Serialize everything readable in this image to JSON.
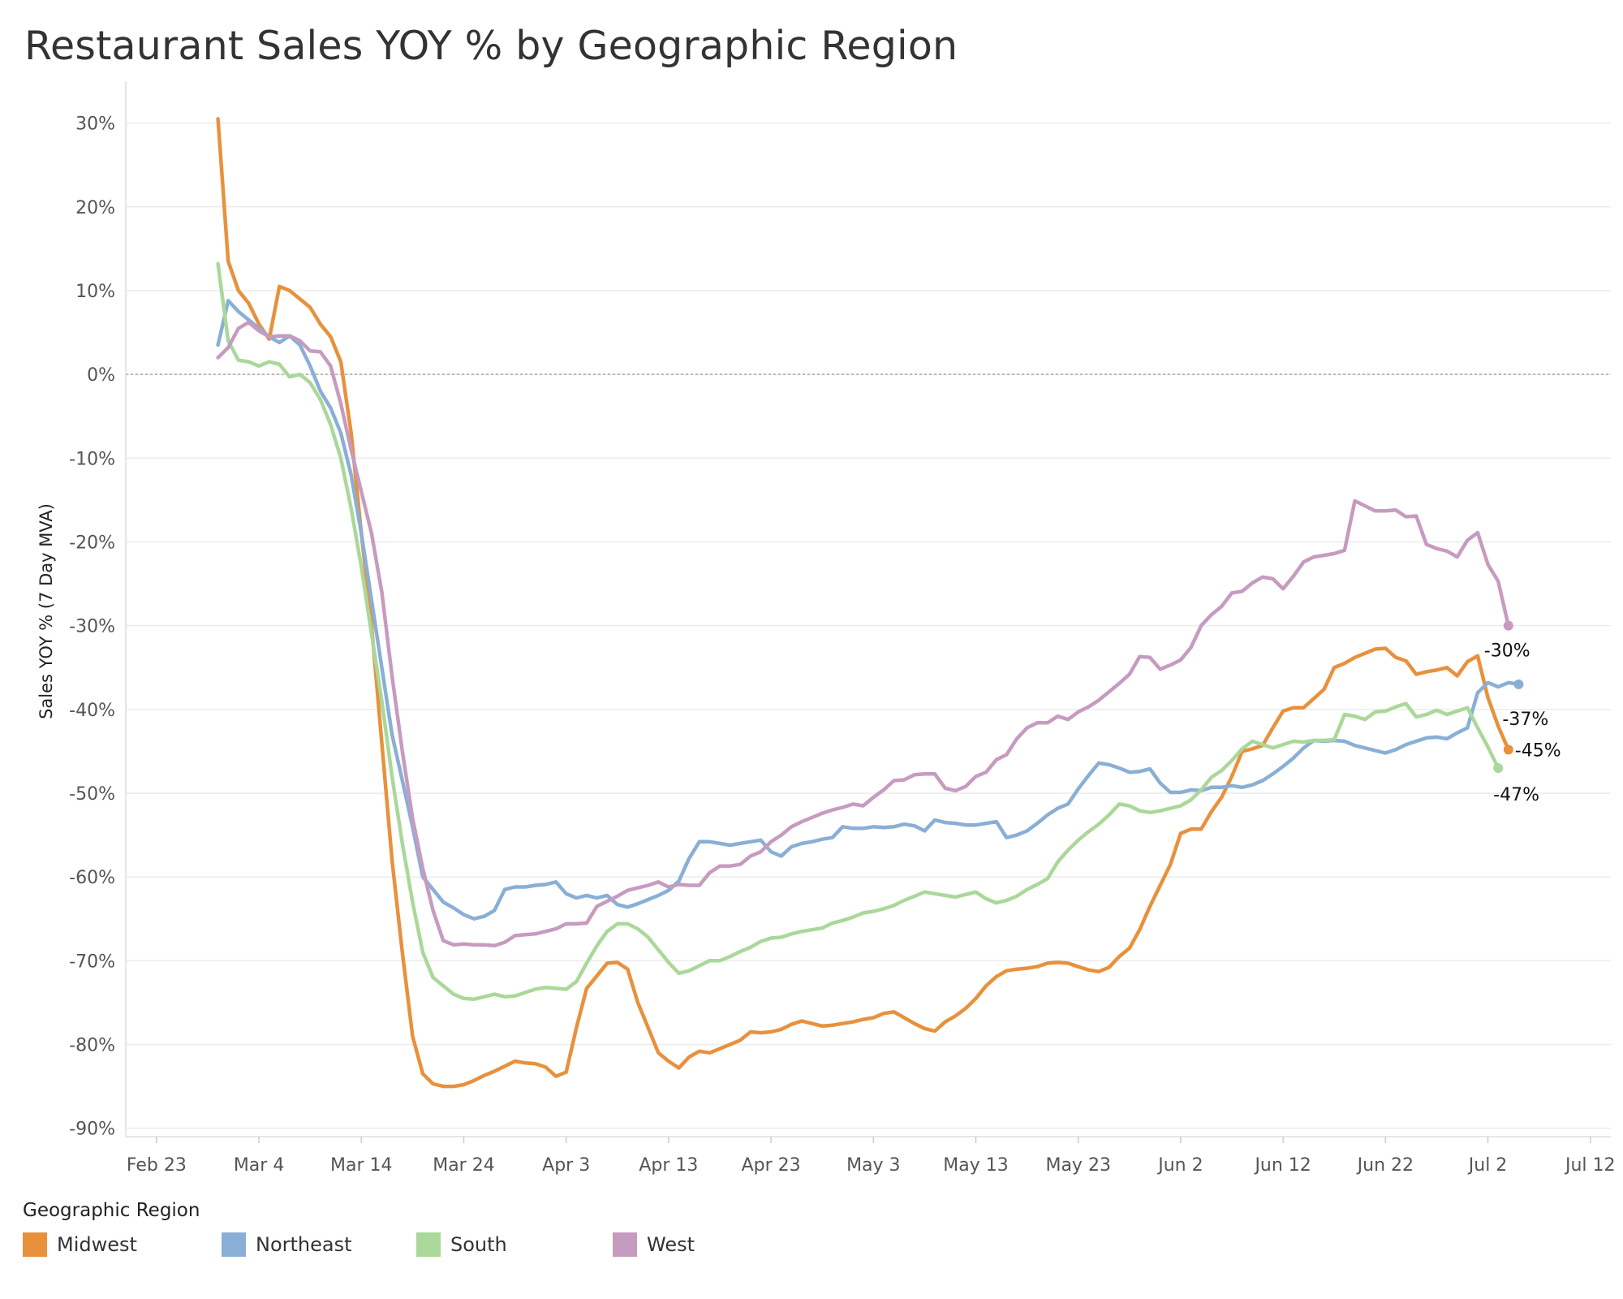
{
  "chart_data": {
    "type": "line",
    "title": "Restaurant Sales YOY % by Geographic Region",
    "ylabel": "Sales YOY % (7 Day MVA)",
    "xlabel": "",
    "ylim": [
      -91,
      35
    ],
    "xlim": [
      "2020-02-20",
      "2020-07-14"
    ],
    "y_ticks": [
      30,
      20,
      10,
      0,
      -10,
      -20,
      -30,
      -40,
      -50,
      -60,
      -70,
      -80,
      -90
    ],
    "y_tick_labels": [
      "30%",
      "20%",
      "10%",
      "0%",
      "-10%",
      "-20%",
      "-30%",
      "-40%",
      "-50%",
      "-60%",
      "-70%",
      "-80%",
      "-90%"
    ],
    "x_ticks": [
      "2020-02-23",
      "2020-03-04",
      "2020-03-14",
      "2020-03-24",
      "2020-04-03",
      "2020-04-13",
      "2020-04-23",
      "2020-05-03",
      "2020-05-13",
      "2020-05-23",
      "2020-06-02",
      "2020-06-12",
      "2020-06-22",
      "2020-07-02",
      "2020-07-12"
    ],
    "x_tick_labels": [
      "Feb 23",
      "Mar 4",
      "Mar 14",
      "Mar 24",
      "Apr 3",
      "Apr 13",
      "Apr 23",
      "May 3",
      "May 13",
      "May 23",
      "Jun 2",
      "Jun 12",
      "Jun 22",
      "Jul 2",
      "Jul 12"
    ],
    "reference_line": 0,
    "grid": true,
    "legend_position": "bottom-left",
    "legend_title": "Geographic Region",
    "x_start": "2020-02-29",
    "series": [
      {
        "name": "Midwest",
        "color": "#e8913d",
        "end_label": "-45%",
        "values": [
          30.5,
          13.5,
          10,
          8.5,
          6,
          4.2,
          10.5,
          10,
          9,
          8,
          6,
          4.5,
          1.5,
          -7,
          -19,
          -30,
          -44,
          -58,
          -69,
          -79,
          -83.5,
          -84.7,
          -85,
          -85,
          -84.8,
          -84.3,
          -83.7,
          -83.2,
          -82.6,
          -82,
          -82.2,
          -82.3,
          -82.7,
          -83.8,
          -83.3,
          -78,
          -73.3,
          -71.8,
          -70.3,
          -70.2,
          -71,
          -75,
          -78,
          -81,
          -82,
          -82.8,
          -81.5,
          -80.8,
          -81,
          -80.5,
          -80,
          -79.5,
          -78.5,
          -78.6,
          -78.5,
          -78.2,
          -77.6,
          -77.2,
          -77.5,
          -77.8,
          -77.7,
          -77.5,
          -77.3,
          -77,
          -76.8,
          -76.3,
          -76.1,
          -76.8,
          -77.5,
          -78.1,
          -78.4,
          -77.3,
          -76.6,
          -75.7,
          -74.5,
          -73,
          -71.9,
          -71.2,
          -71,
          -70.9,
          -70.7,
          -70.3,
          -70.2,
          -70.3,
          -70.7,
          -71.1,
          -71.3,
          -70.8,
          -69.5,
          -68.5,
          -66.3,
          -63.5,
          -61,
          -58.5,
          -54.8,
          -54.3,
          -54.3,
          -52.2,
          -50.5,
          -48,
          -45,
          -44.7,
          -44.3,
          -42.2,
          -40.2,
          -39.8,
          -39.8,
          -38.7,
          -37.6,
          -35,
          -34.5,
          -33.8,
          -33.3,
          -32.8,
          -32.7,
          -33.8,
          -34.2,
          -35.8,
          -35.5,
          -35.3,
          -35,
          -36,
          -34.3,
          -33.6,
          -38.6,
          -42,
          -44.8
        ]
      },
      {
        "name": "Northeast",
        "color": "#8aafd6",
        "end_label": "-37%",
        "values": [
          3.5,
          8.8,
          7.5,
          6.5,
          5.5,
          4.5,
          3.8,
          4.6,
          3.5,
          1,
          -2,
          -4,
          -7,
          -12,
          -19,
          -27,
          -35,
          -43,
          -48.5,
          -54,
          -60,
          -61.5,
          -63,
          -63.7,
          -64.5,
          -65,
          -64.7,
          -64,
          -61.5,
          -61.2,
          -61.2,
          -61,
          -60.9,
          -60.6,
          -62,
          -62.5,
          -62.2,
          -62.5,
          -62.2,
          -63.3,
          -63.6,
          -63.2,
          -62.7,
          -62.2,
          -61.6,
          -60.5,
          -57.8,
          -55.8,
          -55.8,
          -56,
          -56.2,
          -56,
          -55.8,
          -55.6,
          -57,
          -57.5,
          -56.4,
          -56,
          -55.8,
          -55.5,
          -55.3,
          -54,
          -54.2,
          -54.2,
          -54,
          -54.1,
          -54,
          -53.7,
          -53.9,
          -54.5,
          -53.2,
          -53.5,
          -53.6,
          -53.8,
          -53.8,
          -53.6,
          -53.4,
          -55.3,
          -55,
          -54.5,
          -53.6,
          -52.6,
          -51.8,
          -51.3,
          -49.5,
          -47.9,
          -46.4,
          -46.6,
          -47,
          -47.5,
          -47.4,
          -47.1,
          -48.8,
          -49.9,
          -49.9,
          -49.6,
          -49.7,
          -49.3,
          -49.3,
          -49.1,
          -49.3,
          -49,
          -48.5,
          -47.7,
          -46.8,
          -45.8,
          -44.6,
          -43.7,
          -43.8,
          -43.7,
          -43.8,
          -44.3,
          -44.6,
          -44.9,
          -45.2,
          -44.8,
          -44.2,
          -43.8,
          -43.4,
          -43.3,
          -43.5,
          -42.8,
          -42.2,
          -38,
          -36.8,
          -37.3,
          -36.8,
          -37
        ]
      },
      {
        "name": "South",
        "color": "#aad89a",
        "end_label": "-47%",
        "values": [
          13.2,
          4,
          1.7,
          1.5,
          1,
          1.5,
          1.2,
          -0.3,
          0,
          -1,
          -3,
          -6,
          -10,
          -16,
          -23,
          -31,
          -39,
          -48,
          -56,
          -63,
          -69,
          -72,
          -73,
          -74,
          -74.5,
          -74.6,
          -74.3,
          -74,
          -74.3,
          -74.2,
          -73.8,
          -73.4,
          -73.2,
          -73.3,
          -73.4,
          -72.5,
          -70.3,
          -68.2,
          -66.5,
          -65.6,
          -65.6,
          -66.2,
          -67.2,
          -68.7,
          -70.2,
          -71.5,
          -71.2,
          -70.6,
          -70,
          -70,
          -69.5,
          -68.9,
          -68.4,
          -67.7,
          -67.3,
          -67.2,
          -66.8,
          -66.5,
          -66.3,
          -66.1,
          -65.5,
          -65.2,
          -64.8,
          -64.3,
          -64.1,
          -63.8,
          -63.4,
          -62.8,
          -62.3,
          -61.8,
          -62,
          -62.2,
          -62.4,
          -62.1,
          -61.8,
          -62.6,
          -63.1,
          -62.8,
          -62.3,
          -61.5,
          -60.9,
          -60.2,
          -58.2,
          -56.8,
          -55.6,
          -54.6,
          -53.7,
          -52.6,
          -51.3,
          -51.5,
          -52.1,
          -52.3,
          -52.1,
          -51.8,
          -51.5,
          -50.8,
          -49.6,
          -48.1,
          -47.3,
          -46.1,
          -44.7,
          -43.8,
          -44.2,
          -44.6,
          -44.2,
          -43.8,
          -43.9,
          -43.7,
          -43.7,
          -43.6,
          -40.6,
          -40.8,
          -41.2,
          -40.3,
          -40.2,
          -39.7,
          -39.3,
          -40.9,
          -40.6,
          -40.1,
          -40.6,
          -40.2,
          -39.8,
          -42.2,
          -44.5,
          -47
        ]
      },
      {
        "name": "West",
        "color": "#c79bbf",
        "end_label": "-30%",
        "values": [
          2,
          3.2,
          5.5,
          6.2,
          5.2,
          4.5,
          4.6,
          4.6,
          4,
          2.8,
          2.7,
          1,
          -3.5,
          -9,
          -14,
          -19,
          -26,
          -36,
          -45,
          -53,
          -59,
          -64,
          -67.6,
          -68.1,
          -68,
          -68.1,
          -68.1,
          -68.2,
          -67.8,
          -67,
          -66.9,
          -66.8,
          -66.5,
          -66.2,
          -65.6,
          -65.6,
          -65.5,
          -63.5,
          -62.9,
          -62.3,
          -61.6,
          -61.3,
          -61,
          -60.6,
          -61.2,
          -60.9,
          -61,
          -61,
          -59.5,
          -58.7,
          -58.7,
          -58.5,
          -57.5,
          -57,
          -55.8,
          -55,
          -54,
          -53.4,
          -52.9,
          -52.4,
          -52,
          -51.7,
          -51.3,
          -51.5,
          -50.5,
          -49.6,
          -48.5,
          -48.4,
          -47.8,
          -47.7,
          -47.7,
          -49.4,
          -49.7,
          -49.2,
          -48,
          -47.5,
          -46,
          -45.4,
          -43.5,
          -42.2,
          -41.6,
          -41.6,
          -40.8,
          -41.2,
          -40.3,
          -39.7,
          -38.9,
          -37.9,
          -36.9,
          -35.8,
          -33.7,
          -33.8,
          -35.2,
          -34.7,
          -34.1,
          -32.6,
          -30,
          -28.7,
          -27.7,
          -26.1,
          -25.9,
          -24.9,
          -24.2,
          -24.4,
          -25.6,
          -24.1,
          -22.4,
          -21.8,
          -21.6,
          -21.4,
          -21,
          -15.1,
          -15.7,
          -16.3,
          -16.3,
          -16.2,
          -17,
          -16.9,
          -20.3,
          -20.8,
          -21.1,
          -21.8,
          -19.8,
          -18.9,
          -22.7,
          -24.7,
          -30
        ]
      }
    ]
  }
}
